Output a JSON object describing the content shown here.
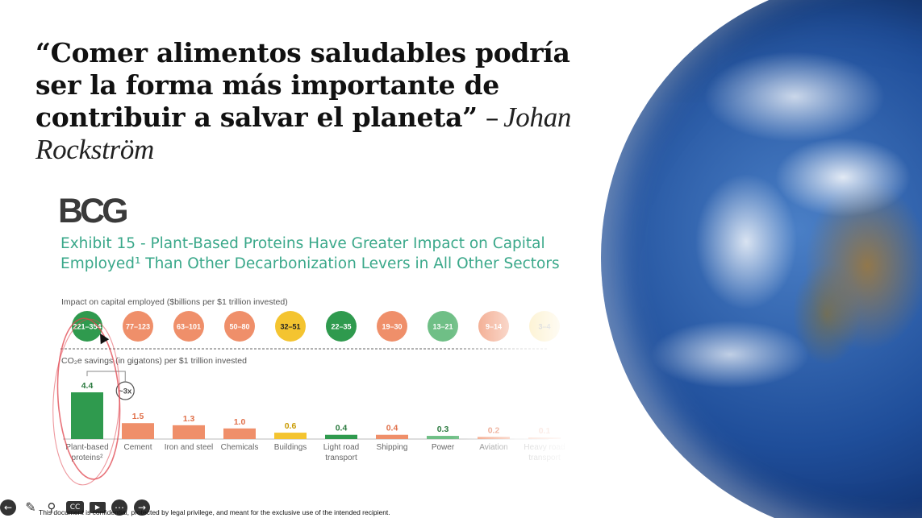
{
  "slide": {
    "quote_text": "“Comer alimentos saludables podría ser la forma más importante de contribuir a salvar el planeta”",
    "quote_author": "Johan Rockström",
    "quote_dash": "–"
  },
  "logo": "BCG",
  "exhibit_title": "Exhibit 15 - Plant-Based Proteins Have Greater Impact on Capital Employed¹ Than Other Decarbonization Levers in All Other Sectors",
  "footer": {
    "confidential": "This document is confidential, protected by legal privilege, and meant for the exclusive use of the intended recipient."
  },
  "toolbar": {
    "icons": [
      "arrow-left-icon",
      "pen-icon",
      "search-icon",
      "captions-icon",
      "video-icon",
      "more-icon",
      "arrow-right-icon"
    ],
    "cc_label": "CC"
  },
  "colors": {
    "green": "#2f9a4e",
    "orange": "#ef8f6a",
    "yellow": "#f4c430",
    "light_green": "#6fbf86",
    "title_teal": "#3aa88a",
    "annotation_red": "#e0444e"
  },
  "chart_data": {
    "type": "bar",
    "top_label": "Impact on capital employed ($billions per $1 trillion invested)",
    "bottom_label": "CO₂e savings (in gigatons) per $1 trillion invested",
    "multiplier_label": "~3x",
    "categories": [
      "Plant-based proteins²",
      "Cement",
      "Iron and steel",
      "Chemicals",
      "Buildings",
      "Light road transport",
      "Shipping",
      "Power",
      "Aviation",
      "Heavy road transport"
    ],
    "category_lines": [
      [
        "Plant-based",
        "proteins²"
      ],
      [
        "Cement"
      ],
      [
        "Iron and steel"
      ],
      [
        "Chemicals"
      ],
      [
        "Buildings"
      ],
      [
        "Light road",
        "transport"
      ],
      [
        "Shipping"
      ],
      [
        "Power"
      ],
      [
        "Aviation"
      ],
      [
        "Heavy road",
        "transport"
      ]
    ],
    "capital_ranges": [
      "221–354",
      "77–123",
      "63–101",
      "50–80",
      "32–51",
      "22–35",
      "19–30",
      "13–21",
      "9–14",
      "3–4"
    ],
    "circle_colors": [
      "#2f9a4e",
      "#ef8f6a",
      "#ef8f6a",
      "#ef8f6a",
      "#f4c430",
      "#2f9a4e",
      "#ef8f6a",
      "#6fbf86",
      "#ef8f6a",
      "#f4c430"
    ],
    "values": [
      4.4,
      1.5,
      1.3,
      1.0,
      0.6,
      0.4,
      0.4,
      0.3,
      0.2,
      0.1
    ],
    "bar_colors": [
      "#2f9a4e",
      "#ef8f6a",
      "#ef8f6a",
      "#ef8f6a",
      "#f4c430",
      "#2f9a4e",
      "#ef8f6a",
      "#6fbf86",
      "#ef8f6a",
      "#ef8f6a"
    ],
    "ylim": [
      0,
      4.4
    ]
  }
}
